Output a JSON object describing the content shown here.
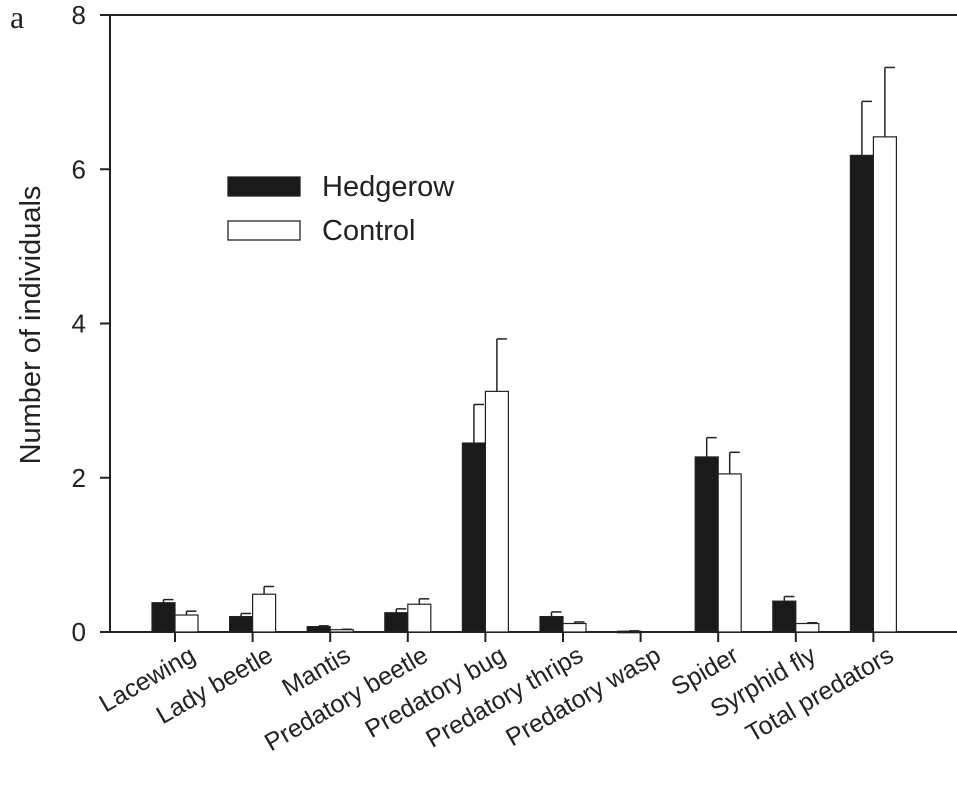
{
  "chart_data": {
    "type": "bar",
    "panel_label": "a",
    "ylabel": "Number of individuals",
    "xlabel": "",
    "ylim": [
      0,
      8
    ],
    "yticks": [
      0,
      2,
      4,
      6,
      8
    ],
    "categories": [
      "Lacewing",
      "Lady beetle",
      "Mantis",
      "Predatory beetle",
      "Predatory bug",
      "Predatory thrips",
      "Predatory wasp",
      "Spider",
      "Syrphid fly",
      "Total predators"
    ],
    "series": [
      {
        "name": "Hedgerow",
        "color": "#1a1a1a",
        "values": [
          0.38,
          0.2,
          0.07,
          0.25,
          2.45,
          0.2,
          0.01,
          2.27,
          0.4,
          6.18
        ],
        "errors": [
          0.04,
          0.04,
          0.01,
          0.05,
          0.5,
          0.06,
          0.005,
          0.25,
          0.06,
          0.7
        ]
      },
      {
        "name": "Control",
        "color": "#ffffff",
        "values": [
          0.22,
          0.49,
          0.03,
          0.36,
          3.12,
          0.11,
          0.0,
          2.05,
          0.11,
          6.42
        ],
        "errors": [
          0.05,
          0.1,
          0.005,
          0.07,
          0.68,
          0.02,
          0.0,
          0.28,
          0.01,
          0.9
        ]
      }
    ],
    "legend_position": "upper-left",
    "grid": false
  }
}
